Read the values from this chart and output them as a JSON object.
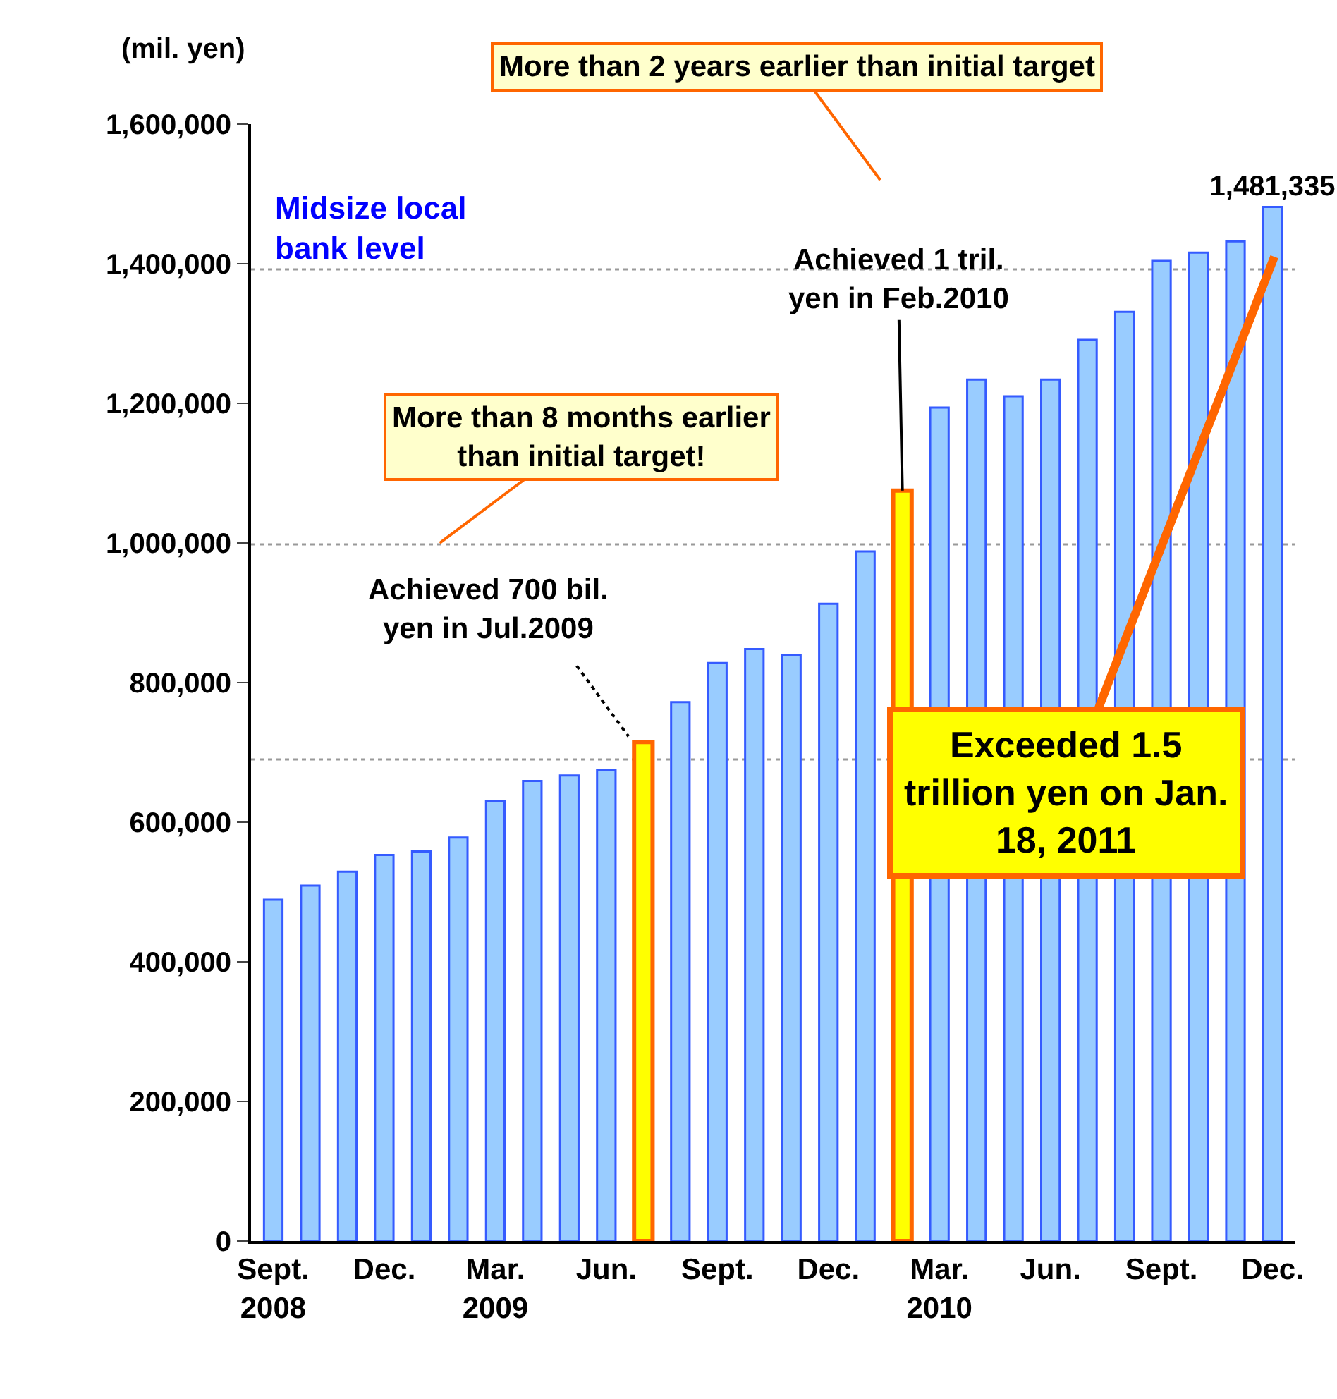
{
  "chart_data": {
    "type": "bar",
    "ylabel": "(mil. yen)",
    "categories": [
      "Sept.\n2008",
      null,
      null,
      "Dec.",
      null,
      null,
      "Mar.\n2009",
      null,
      null,
      "Jun.",
      null,
      null,
      "Sept.",
      null,
      null,
      "Dec.",
      null,
      null,
      "Mar.\n2010",
      null,
      null,
      "Jun.",
      null,
      null,
      "Sept.",
      null,
      null,
      "Dec."
    ],
    "values": [
      489000,
      509000,
      529000,
      553000,
      558000,
      578000,
      630000,
      659000,
      667000,
      675000,
      715000,
      772000,
      828000,
      848000,
      840000,
      913000,
      988000,
      1075000,
      1194000,
      1234000,
      1210000,
      1234000,
      1291000,
      1331000,
      1404000,
      1416000,
      1432000,
      1481335
    ],
    "colors": [
      "#99ccff",
      "#99ccff",
      "#99ccff",
      "#99ccff",
      "#99ccff",
      "#99ccff",
      "#99ccff",
      "#99ccff",
      "#99ccff",
      "#99ccff",
      "#ffff00",
      "#99ccff",
      "#99ccff",
      "#99ccff",
      "#99ccff",
      "#99ccff",
      "#99ccff",
      "#ffff00",
      "#99ccff",
      "#99ccff",
      "#99ccff",
      "#99ccff",
      "#99ccff",
      "#99ccff",
      "#99ccff",
      "#99ccff",
      "#99ccff",
      "#99ccff"
    ],
    "value_labels": [
      null,
      null,
      null,
      null,
      null,
      null,
      null,
      null,
      null,
      null,
      null,
      null,
      null,
      null,
      null,
      null,
      null,
      null,
      null,
      null,
      null,
      null,
      null,
      null,
      null,
      null,
      null,
      "1,481,335"
    ],
    "ylim": [
      0,
      1600000
    ],
    "yticks": [
      {
        "value": 0,
        "label": "0"
      },
      {
        "value": 200000,
        "label": "200,000"
      },
      {
        "value": 400000,
        "label": "400,000"
      },
      {
        "value": 600000,
        "label": "600,000"
      },
      {
        "value": 800000,
        "label": "800,000"
      },
      {
        "value": 1000000,
        "label": "1,000,000"
      },
      {
        "value": 1200000,
        "label": "1,200,000"
      },
      {
        "value": 1400000,
        "label": "1,400,000"
      },
      {
        "value": 1600000,
        "label": "1,600,000"
      }
    ],
    "ref_lines": [
      {
        "axis": "y",
        "value": 690000,
        "color": "#999999",
        "line_style": "dotted"
      },
      {
        "axis": "y",
        "value": 998000,
        "color": "#999999",
        "line_style": "dotted"
      },
      {
        "axis": "y",
        "value": 1392000,
        "color": "#999999",
        "line_style": "dotted",
        "label": "Midsize local\nbank level"
      }
    ],
    "annotations": [
      "More than 2 years earlier than initial target",
      {
        "text": "More than 8 months earlier\nthan initial target!",
        "y": 1000000
      },
      "Achieved 700 bil.\nyen in Jul.2009",
      {
        "text": "Achieved 1 tril.\nyen in Feb.2010",
        "y": 1075000
      },
      "Exceeded 1.5\ntrillion yen on Jan.\n18, 2011"
    ]
  }
}
